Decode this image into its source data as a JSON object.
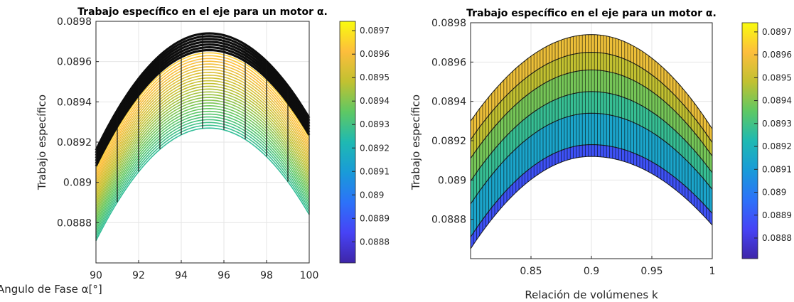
{
  "chart_data": [
    {
      "type": "surface",
      "title": "Trabajo específico en el eje para un motor α.",
      "xlabel": "Angulo de Fase α[°]",
      "ylabel": "Trabajo específico",
      "xlim": [
        90,
        100
      ],
      "ylim": [
        0.0886,
        0.0898
      ],
      "xticks": [
        "90",
        "92",
        "94",
        "96",
        "98",
        "100"
      ],
      "yticks": [
        "0.0888",
        "0.089",
        "0.0892",
        "0.0894",
        "0.0896",
        "0.0898"
      ],
      "view": "x-z projection of a surface; curves span the second parameter",
      "curve_peak_x": 95.3,
      "lower_envelope": {
        "left": 0.08871,
        "peak": 0.08927,
        "right": 0.08884
      },
      "upper_envelope": {
        "left": 0.08916,
        "peak": 0.08974,
        "right": 0.08932
      },
      "colorbar": {
        "ticks": [
          "0.0888",
          "0.0889",
          "0.089",
          "0.0891",
          "0.0892",
          "0.0893",
          "0.0894",
          "0.0895",
          "0.0896",
          "0.0897"
        ],
        "range": [
          0.08871,
          0.08974
        ],
        "colormap": "parula"
      },
      "grid": true
    },
    {
      "type": "surface",
      "title": "Trabajo específico en el eje para un motor α.",
      "xlabel": "Relación de volúmenes k",
      "ylabel": "Trabajo específico",
      "xlim": [
        0.8,
        1.0
      ],
      "ylim": [
        0.0886,
        0.0898
      ],
      "xticks": [
        "0.85",
        "0.9",
        "0.95",
        "1"
      ],
      "yticks": [
        "0.0888",
        "0.089",
        "0.0892",
        "0.0894",
        "0.0896",
        "0.0898"
      ],
      "view": "x-z projection of a surface; bands span the phase angle",
      "curve_peak_x": 0.9,
      "lower_envelope": {
        "left": 0.08871,
        "peak": 0.08918,
        "right": 0.08883
      },
      "upper_envelope": {
        "left": 0.0893,
        "peak": 0.08974,
        "right": 0.08926
      },
      "band_levels": [
        0.08918,
        0.08934,
        0.08945,
        0.08956,
        0.08965,
        0.08974
      ],
      "colorbar": {
        "ticks": [
          "0.0888",
          "0.0889",
          "0.089",
          "0.0891",
          "0.0892",
          "0.0893",
          "0.0894",
          "0.0895",
          "0.0896",
          "0.0897"
        ],
        "range": [
          0.08871,
          0.08974
        ],
        "colormap": "parula"
      },
      "grid": true
    }
  ]
}
